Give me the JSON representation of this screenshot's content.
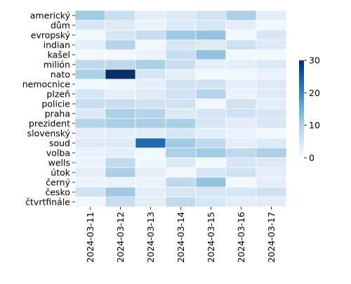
{
  "chart_data": {
    "type": "heatmap",
    "title": "",
    "xlabel": "",
    "ylabel": "",
    "x_categories": [
      "2024-03-11",
      "2024-03-12",
      "2024-03-13",
      "2024-03-14",
      "2024-03-15",
      "2024-03-16",
      "2024-03-17"
    ],
    "y_categories": [
      "americký",
      "dům",
      "evropský",
      "indian",
      "kašel",
      "milión",
      "nato",
      "nemocnice",
      "plzeň",
      "policie",
      "praha",
      "prezident",
      "slovenský",
      "soud",
      "volba",
      "wells",
      "útok",
      "černý",
      "česko",
      "čtvrtfinále"
    ],
    "values": [
      [
        11,
        7,
        3,
        4,
        6,
        10,
        3
      ],
      [
        5,
        4,
        2,
        4,
        5,
        3,
        1
      ],
      [
        1,
        5,
        7,
        11,
        12,
        1,
        5
      ],
      [
        3,
        9,
        1,
        5,
        4,
        6,
        4
      ],
      [
        1,
        1,
        2,
        7,
        12,
        1,
        1
      ],
      [
        8,
        8,
        10,
        7,
        3,
        3,
        4
      ],
      [
        10,
        30,
        5,
        3,
        1,
        1,
        2
      ],
      [
        1,
        1,
        3,
        6,
        6,
        3,
        4
      ],
      [
        5,
        3,
        4,
        6,
        9,
        2,
        4
      ],
      [
        7,
        7,
        6,
        6,
        1,
        6,
        3
      ],
      [
        4,
        10,
        9,
        4,
        5,
        6,
        5
      ],
      [
        9,
        10,
        10,
        10,
        5,
        3,
        5
      ],
      [
        3,
        3,
        3,
        5,
        3,
        2,
        1
      ],
      [
        4,
        4,
        23,
        11,
        8,
        3,
        4
      ],
      [
        2,
        3,
        1,
        10,
        11,
        8,
        10
      ],
      [
        2,
        8,
        1,
        4,
        1,
        5,
        4
      ],
      [
        3,
        10,
        3,
        1,
        5,
        6,
        3
      ],
      [
        2,
        2,
        2,
        8,
        12,
        1,
        3
      ],
      [
        6,
        11,
        3,
        5,
        5,
        5,
        6
      ],
      [
        1,
        7,
        3,
        8,
        5,
        3,
        3
      ]
    ],
    "colorbar": {
      "min": 0,
      "max": 30,
      "ticks": [
        0,
        10,
        20,
        30
      ]
    },
    "colormap": "Blues",
    "colors": {
      "low": "#f7fbff",
      "high": "#08306b",
      "cell_border": "#ffffff"
    }
  }
}
